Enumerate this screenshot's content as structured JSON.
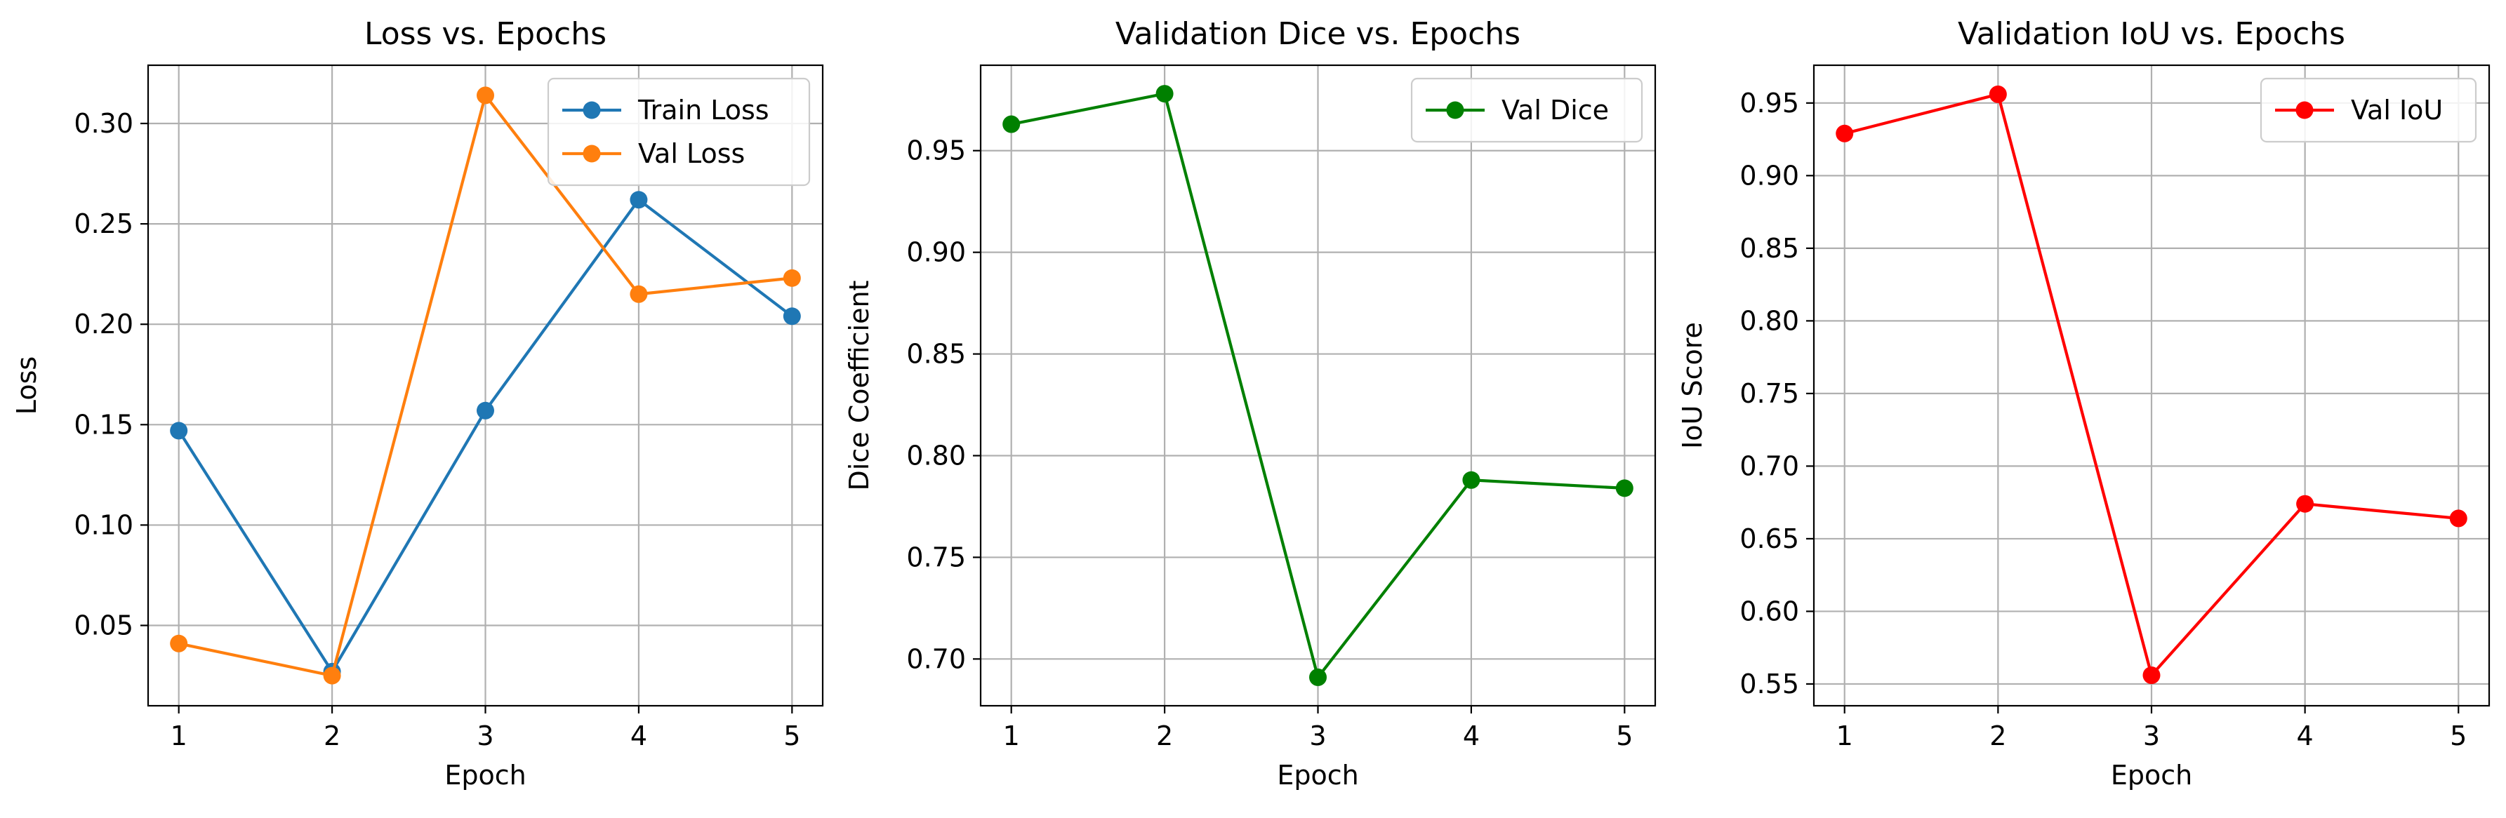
{
  "chart_data": [
    {
      "type": "line",
      "title": "Loss vs. Epochs",
      "xlabel": "Epoch",
      "ylabel": "Loss",
      "x": [
        1,
        2,
        3,
        4,
        5
      ],
      "xticks": [
        1,
        2,
        3,
        4,
        5
      ],
      "xlim": [
        0.8,
        5.2
      ],
      "yticks": [
        0.05,
        0.1,
        0.15,
        0.2,
        0.25,
        0.3
      ],
      "ylim": [
        0.01,
        0.329
      ],
      "tick_decimals": 2,
      "grid": true,
      "legend": "top-right",
      "series": [
        {
          "name": "Train Loss",
          "color": "#1f77b4",
          "marker": "circle",
          "values": [
            0.147,
            0.027,
            0.157,
            0.262,
            0.204
          ]
        },
        {
          "name": "Val Loss",
          "color": "#ff7f0e",
          "marker": "circle",
          "values": [
            0.041,
            0.025,
            0.314,
            0.215,
            0.223
          ]
        }
      ]
    },
    {
      "type": "line",
      "title": "Validation Dice vs. Epochs",
      "xlabel": "Epoch",
      "ylabel": "Dice Coefficient",
      "x": [
        1,
        2,
        3,
        4,
        5
      ],
      "xticks": [
        1,
        2,
        3,
        4,
        5
      ],
      "xlim": [
        0.8,
        5.2
      ],
      "yticks": [
        0.7,
        0.75,
        0.8,
        0.85,
        0.9,
        0.95
      ],
      "ylim": [
        0.677,
        0.992
      ],
      "tick_decimals": 2,
      "grid": true,
      "legend": "top-right",
      "series": [
        {
          "name": "Val Dice",
          "color": "#008000",
          "marker": "circle",
          "values": [
            0.963,
            0.978,
            0.691,
            0.788,
            0.784
          ]
        }
      ]
    },
    {
      "type": "line",
      "title": "Validation IoU vs. Epochs",
      "xlabel": "Epoch",
      "ylabel": "IoU Score",
      "x": [
        1,
        2,
        3,
        4,
        5
      ],
      "xticks": [
        1,
        2,
        3,
        4,
        5
      ],
      "xlim": [
        0.8,
        5.2
      ],
      "yticks": [
        0.55,
        0.6,
        0.65,
        0.7,
        0.75,
        0.8,
        0.85,
        0.9,
        0.95
      ],
      "ylim": [
        0.535,
        0.976
      ],
      "tick_decimals": 2,
      "grid": true,
      "legend": "top-right",
      "series": [
        {
          "name": "Val IoU",
          "color": "#ff0000",
          "marker": "circle",
          "values": [
            0.929,
            0.956,
            0.556,
            0.674,
            0.664
          ]
        }
      ]
    }
  ]
}
